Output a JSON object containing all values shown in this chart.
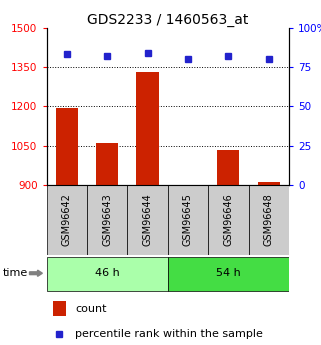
{
  "title": "GDS2233 / 1460563_at",
  "categories": [
    "GSM96642",
    "GSM96643",
    "GSM96644",
    "GSM96645",
    "GSM96646",
    "GSM96648"
  ],
  "bar_values": [
    1195,
    1060,
    1330,
    900,
    1035,
    910
  ],
  "percentile_values": [
    83,
    82,
    84,
    80,
    82,
    80
  ],
  "bar_color": "#cc2200",
  "percentile_color": "#2222cc",
  "ylim_left": [
    900,
    1500
  ],
  "ylim_right": [
    0,
    100
  ],
  "yticks_left": [
    900,
    1050,
    1200,
    1350,
    1500
  ],
  "yticks_right": [
    0,
    25,
    50,
    75,
    100
  ],
  "group1_label": "46 h",
  "group2_label": "54 h",
  "group1_indices": [
    0,
    1,
    2
  ],
  "group2_indices": [
    3,
    4,
    5
  ],
  "group1_color": "#aaffaa",
  "group2_color": "#44dd44",
  "sample_box_color": "#cccccc",
  "time_label": "time",
  "legend_count": "count",
  "legend_percentile": "percentile rank within the sample",
  "bar_width": 0.55,
  "title_fontsize": 10,
  "tick_fontsize": 7.5,
  "label_fontsize": 8,
  "sample_fontsize": 7
}
